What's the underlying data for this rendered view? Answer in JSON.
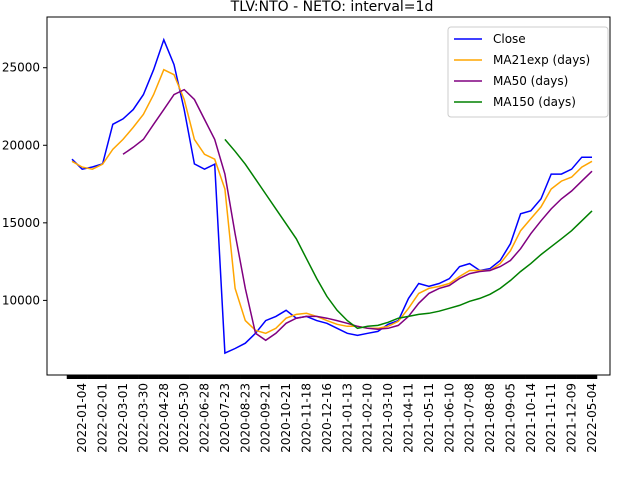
{
  "chart_data": {
    "type": "line",
    "title": "TLV:NTO - NETO: interval=1d",
    "categories": [
      null,
      "2022-01-04",
      null,
      "2022-02-01",
      null,
      "2022-03-01",
      null,
      "2022-03-30",
      null,
      "2022-04-28",
      null,
      "2022-05-30",
      null,
      "2022-06-28",
      null,
      "2020-07-23",
      null,
      "2020-08-23",
      null,
      "2020-09-21",
      null,
      "2020-10-21",
      null,
      "2020-11-18",
      null,
      "2020-12-16",
      null,
      "2021-01-13",
      null,
      "2021-02-10",
      null,
      "2021-03-10",
      null,
      "2021-04-11",
      null,
      "2021-05-11",
      null,
      "2021-06-10",
      null,
      "2021-07-08",
      null,
      "2021-08-08",
      null,
      "2021-09-05",
      null,
      "2021-10-14",
      null,
      "2021-11-11",
      null,
      "2021-12-09",
      null,
      "2022-05-04"
    ],
    "series": [
      {
        "name": "Close",
        "color": "#0000ff",
        "values": [
          19100,
          18460,
          18600,
          18800,
          21350,
          21700,
          22300,
          23270,
          24870,
          26800,
          25200,
          22300,
          18800,
          18460,
          18780,
          6600,
          6900,
          7240,
          7880,
          8700,
          8970,
          9360,
          8850,
          8970,
          8700,
          8520,
          8200,
          7880,
          7750,
          7880,
          8000,
          8460,
          8700,
          10130,
          11090,
          10900,
          11090,
          11400,
          12180,
          12370,
          11930,
          12050,
          12570,
          13650,
          15580,
          15770,
          16540,
          18140,
          18140,
          18460,
          19230,
          19230
        ]
      },
      {
        "name": "MA21exp (days)",
        "color": "#ffa500",
        "values": [
          18970,
          18590,
          18460,
          18780,
          19740,
          20380,
          21150,
          21990,
          23270,
          24870,
          24550,
          22950,
          20380,
          19420,
          19100,
          17180,
          10770,
          8700,
          8070,
          7880,
          8200,
          8850,
          9100,
          9170,
          8970,
          8700,
          8460,
          8330,
          8330,
          8200,
          8200,
          8330,
          8650,
          9490,
          10450,
          10770,
          10900,
          11090,
          11540,
          11930,
          11930,
          11930,
          12370,
          13200,
          14490,
          15260,
          16030,
          17180,
          17690,
          17950,
          18590,
          18970
        ]
      },
      {
        "name": "MA50 (days)",
        "color": "#800080",
        "values": [
          null,
          null,
          null,
          null,
          null,
          19420,
          19870,
          20380,
          21350,
          22300,
          23270,
          23590,
          22950,
          21670,
          20380,
          18140,
          14300,
          10770,
          7880,
          7430,
          7880,
          8520,
          8850,
          8970,
          8970,
          8850,
          8700,
          8520,
          8330,
          8200,
          8140,
          8200,
          8390,
          8970,
          9810,
          10450,
          10770,
          10960,
          11410,
          11730,
          11860,
          11930,
          12180,
          12570,
          13330,
          14300,
          15130,
          15900,
          16540,
          17050,
          17690,
          18330
        ]
      },
      {
        "name": "MA150 (days)",
        "color": "#008000",
        "values": [
          null,
          null,
          null,
          null,
          null,
          null,
          null,
          null,
          null,
          null,
          null,
          null,
          null,
          null,
          null,
          20380,
          19610,
          18780,
          17820,
          16860,
          15900,
          14940,
          13970,
          12690,
          11410,
          10260,
          9360,
          8700,
          8200,
          8330,
          8390,
          8590,
          8850,
          8970,
          9100,
          9170,
          9300,
          9490,
          9680,
          9940,
          10130,
          10390,
          10770,
          11280,
          11860,
          12370,
          12950,
          13460,
          13970,
          14490,
          15130,
          15770
        ]
      }
    ],
    "ylim": [
      5190,
      28270
    ],
    "yticks": [
      10000,
      15000,
      20000,
      25000
    ],
    "legend": "upper right"
  }
}
